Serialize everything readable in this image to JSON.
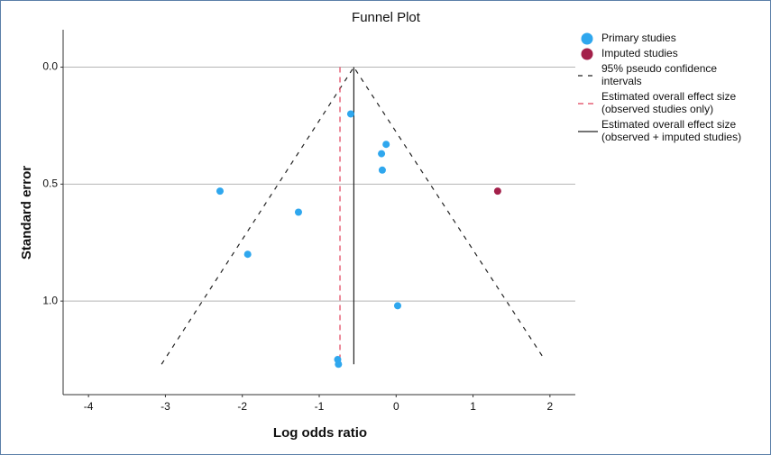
{
  "chart_data": {
    "type": "scatter",
    "title": "Funnel Plot",
    "x_label": "Log odds ratio",
    "y_label": "Standard error",
    "xlim": [
      -4.33,
      2.33
    ],
    "ylim": [
      -0.16,
      1.4
    ],
    "y_inverted": true,
    "xticks": [
      -4,
      -3,
      -2,
      -1,
      0,
      1,
      2
    ],
    "yticks": [
      {
        "value": 0,
        "label": "0.0"
      },
      {
        "value": 0.5,
        "label": "0.5"
      },
      {
        "value": 1,
        "label": "1.0"
      }
    ],
    "grid": "y",
    "series": [
      {
        "name": "Primary studies",
        "mode": "markers",
        "color": "#2fa7ee",
        "x": [
          -0.59,
          -0.13,
          -0.19,
          -0.18,
          -2.29,
          -1.27,
          -1.93,
          0.02,
          -0.76,
          -0.75
        ],
        "values": [
          0.2,
          0.33,
          0.37,
          0.44,
          0.53,
          0.62,
          0.8,
          1.02,
          1.25,
          1.27
        ]
      },
      {
        "name": "Imputed studies",
        "mode": "markers",
        "color": "#a3204a",
        "x": [
          1.32
        ],
        "values": [
          0.53
        ]
      },
      {
        "name": "95% pseudo confidence\nintervals",
        "mode": "lines",
        "dash": "5,6",
        "color": "#222222",
        "x": [
          -3.05,
          -0.55,
          1.93
        ],
        "values": [
          1.27,
          0,
          1.25
        ]
      },
      {
        "name": "Estimated overall effect size\n(observed studies only)",
        "mode": "lines",
        "dash": "6,5",
        "color": "#e0405a",
        "x": [
          -0.73,
          -0.73
        ],
        "values": [
          0,
          1.27
        ]
      },
      {
        "name": "Estimated overall effect size\n(observed + imputed studies)",
        "mode": "lines",
        "color": "#222222",
        "x": [
          -0.55,
          -0.55
        ],
        "values": [
          0,
          1.27
        ]
      }
    ]
  }
}
